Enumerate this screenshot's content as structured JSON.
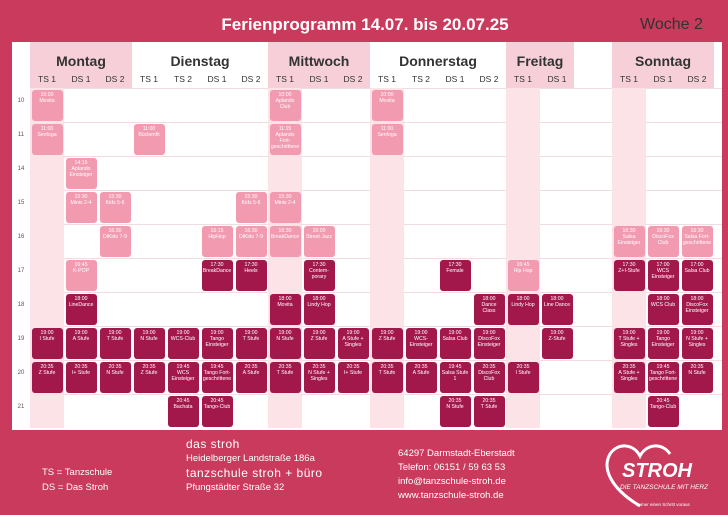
{
  "header": {
    "title": "Ferienprogramm 14.07. bis 20.07.25",
    "week": "Woche 2"
  },
  "schedule": {
    "hours": [
      "10",
      "11",
      "14",
      "15",
      "16",
      "17",
      "18",
      "19",
      "20",
      "21"
    ],
    "days": [
      {
        "name": "Montag",
        "columns": [
          {
            "name": "TS 1",
            "events": [
              {
                "time": "10:00",
                "title": "Movita"
              },
              {
                "time": "11:00",
                "title": "Senfoga"
              },
              {
                "time": "19:00",
                "title": "I Stufe"
              },
              {
                "time": "20:35",
                "title": "Z Stufe"
              }
            ]
          },
          {
            "name": "DS 1",
            "events": [
              {
                "time": "14:15",
                "title": "Aplando Einsteiger"
              },
              {
                "time": "15:30",
                "title": "Minis 2-4"
              },
              {
                "time": "16:45",
                "title": "K-POP"
              },
              {
                "time": "18:00",
                "title": "LineDance"
              },
              {
                "time": "19:00",
                "title": "A Stufe"
              },
              {
                "time": "20:35",
                "title": "I+ Stufe"
              }
            ]
          },
          {
            "name": "DS 2",
            "events": [
              {
                "time": "15:30",
                "title": "Kids 5-6"
              },
              {
                "time": "16:30",
                "title": "DiKids 7-9"
              },
              {
                "time": "19:00",
                "title": "T Stufe"
              },
              {
                "time": "20:35",
                "title": "N Stufe"
              }
            ]
          }
        ]
      },
      {
        "name": "Dienstag",
        "columns": [
          {
            "name": "TS 1",
            "events": [
              {
                "time": "11:00",
                "title": "Bückenfit"
              },
              {
                "time": "19:00",
                "title": "N Stufe"
              },
              {
                "time": "20:35",
                "title": "Z Stufe"
              }
            ]
          },
          {
            "name": "TS 2",
            "events": [
              {
                "time": "19:00",
                "title": "WCS-Club"
              },
              {
                "time": "19:45",
                "title": "WCS Einsteiger"
              },
              {
                "time": "20:45",
                "title": "Bachata"
              }
            ]
          },
          {
            "name": "DS 1",
            "events": [
              {
                "time": "16:15",
                "title": "HipHop"
              },
              {
                "time": "17:30",
                "title": "BreakDance"
              },
              {
                "time": "19:00",
                "title": "Tango Einsteiger"
              },
              {
                "time": "19:45",
                "title": "Tango Fort-geschrittene"
              },
              {
                "time": "20:45",
                "title": "Tango-Club"
              }
            ]
          },
          {
            "name": "DS 2",
            "events": [
              {
                "time": "15:30",
                "title": "Kids 5-6"
              },
              {
                "time": "16:30",
                "title": "DiKids 7-9"
              },
              {
                "time": "17:30",
                "title": "Heels"
              },
              {
                "time": "19:00",
                "title": "T Stufe"
              },
              {
                "time": "20:35",
                "title": "A Stufe"
              }
            ]
          }
        ]
      },
      {
        "name": "Mittwoch",
        "columns": [
          {
            "name": "TS 1",
            "events": [
              {
                "time": "10:00",
                "title": "Aplando Club"
              },
              {
                "time": "11:15",
                "title": "Aplando Fort-geschrittene"
              },
              {
                "time": "15:30",
                "title": "Minis 2-4"
              },
              {
                "time": "16:30",
                "title": "BreakDance"
              },
              {
                "time": "18:00",
                "title": "Movita"
              },
              {
                "time": "19:00",
                "title": "N Stufe"
              },
              {
                "time": "20:35",
                "title": "T Stufe"
              }
            ]
          },
          {
            "name": "DS 1",
            "events": [
              {
                "time": "16:00",
                "title": "Street Jazz"
              },
              {
                "time": "17:30",
                "title": "Contem-porary"
              },
              {
                "time": "18:00",
                "title": "Lindy Hop"
              },
              {
                "time": "19:00",
                "title": "Z Stufe"
              },
              {
                "time": "20:35",
                "title": "N Stufe + Singles"
              }
            ]
          },
          {
            "name": "DS 2",
            "events": [
              {
                "time": "19:00",
                "title": "A Stufe + Singles"
              },
              {
                "time": "20:35",
                "title": "I+ Stufe"
              }
            ]
          }
        ]
      },
      {
        "name": "Donnerstag",
        "columns": [
          {
            "name": "TS 1",
            "events": [
              {
                "time": "10:00",
                "title": "Movita"
              },
              {
                "time": "11:00",
                "title": "Senfoga"
              },
              {
                "time": "19:00",
                "title": "Z Stufe"
              },
              {
                "time": "20:35",
                "title": "T Stufe"
              }
            ]
          },
          {
            "name": "TS 2",
            "events": [
              {
                "time": "19:00",
                "title": "WCS-Einsteiger"
              },
              {
                "time": "20:35",
                "title": "A Stufe"
              }
            ]
          },
          {
            "name": "DS 1",
            "events": [
              {
                "time": "17:30",
                "title": "Female"
              },
              {
                "time": "19:00",
                "title": "Salsa Club"
              },
              {
                "time": "19:45",
                "title": "Salsa Stufe 1"
              },
              {
                "time": "20:35",
                "title": "N Stufe"
              }
            ]
          },
          {
            "name": "DS 2",
            "events": [
              {
                "time": "18:00",
                "title": "Dance Class"
              },
              {
                "time": "19:00",
                "title": "DiscoFox Einsteiger"
              },
              {
                "time": "20:35",
                "title": "DiscoFox Club"
              },
              {
                "time": "20:35",
                "title": "T Stufe"
              }
            ]
          }
        ]
      },
      {
        "name": "Freitag",
        "columns": [
          {
            "name": "TS 1",
            "events": [
              {
                "time": "16:45",
                "title": "Hip Hop"
              },
              {
                "time": "18:00",
                "title": "Lindy Hop"
              },
              {
                "time": "20:35",
                "title": "I Stufe"
              }
            ]
          },
          {
            "name": "DS 1",
            "events": [
              {
                "time": "18:00",
                "title": "Line Dance"
              },
              {
                "time": "19:00",
                "title": "Z-Stufe"
              }
            ]
          }
        ]
      },
      {
        "name": "Sonntag",
        "columns": [
          {
            "name": "TS 1",
            "events": [
              {
                "time": "16:30",
                "title": "Salsa Einsteiger"
              },
              {
                "time": "17:30",
                "title": "Z+I-Stufe"
              },
              {
                "time": "19:00",
                "title": "T Stufe + Singles"
              },
              {
                "time": "20:35",
                "title": "A Stufe + Singles"
              }
            ]
          },
          {
            "name": "DS 1",
            "events": [
              {
                "time": "16:30",
                "title": "DiscoFox Club"
              },
              {
                "time": "17:00",
                "title": "WCS Einsteiger"
              },
              {
                "time": "18:00",
                "title": "WCS Club"
              },
              {
                "time": "19:00",
                "title": "Tango Einsteiger"
              },
              {
                "time": "19:45",
                "title": "Tango Fort-geschrittene"
              },
              {
                "time": "20:45",
                "title": "Tango-Club"
              }
            ]
          },
          {
            "name": "DS 2",
            "events": [
              {
                "time": "16:30",
                "title": "Salsa Fort-geschrittene"
              },
              {
                "time": "17:00",
                "title": "Salsa Club"
              },
              {
                "time": "18:00",
                "title": "DiscoFox Einsteiger"
              },
              {
                "time": "19:00",
                "title": "N Stufe + Singles"
              },
              {
                "time": "20:35",
                "title": "N Stufe"
              }
            ]
          }
        ]
      }
    ]
  },
  "footer": {
    "legend": [
      "TS = Tanzschule",
      "DS = Das Stroh"
    ],
    "venue1": {
      "name": "das stroh",
      "address": "Heidelberger Landstraße 186a"
    },
    "venue2": {
      "name": "tanzschule stroh + büro",
      "address": "Pfungstädter Straße 32"
    },
    "contact": [
      "64297 Darmstadt-Eberstadt",
      "Telefon: 06151 / 59 63 53",
      "info@tanzschule-stroh.de",
      "www.tanzschule-stroh.de"
    ],
    "logo": {
      "name": "STROH",
      "tagline": "DIE TANZSCHULE MIT HERZ",
      "slogan": "Immer einen Schritt voraus"
    }
  }
}
